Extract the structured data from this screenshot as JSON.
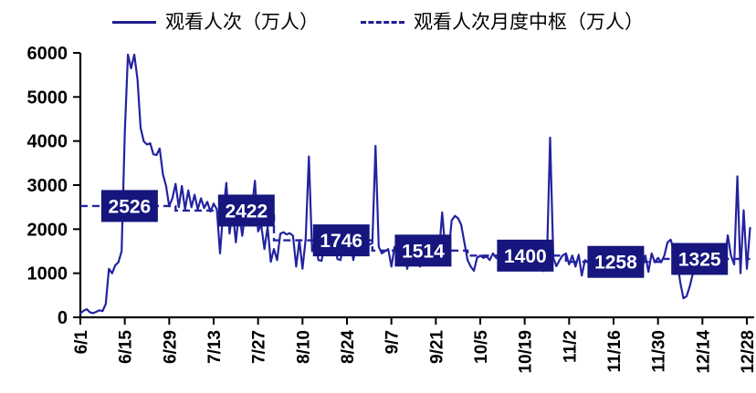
{
  "colors": {
    "line": "#2323A0",
    "median_line": "#2323A0",
    "box_fill": "#16167E",
    "box_text": "#FFFFFF",
    "axis": "#000000",
    "background": "#FFFFFF"
  },
  "chart_data": {
    "type": "line",
    "title": "",
    "xlabel": "",
    "ylabel": "",
    "ylim": [
      0,
      6000
    ],
    "y_ticks": [
      0,
      1000,
      2000,
      3000,
      4000,
      5000,
      6000
    ],
    "x_tick_labels": [
      "6/1",
      "6/15",
      "6/29",
      "7/13",
      "7/27",
      "8/10",
      "8/24",
      "9/7",
      "9/21",
      "10/5",
      "10/19",
      "11/2",
      "11/16",
      "11/30",
      "12/14",
      "12/28"
    ],
    "x_tick_interval_days": 14,
    "x_start_date": "6/1",
    "grid": false,
    "legend_position": "top",
    "series": [
      {
        "name": "观看人次（万人）",
        "style": "solid",
        "daily_values": [
          90,
          150,
          185,
          115,
          95,
          125,
          160,
          140,
          300,
          1100,
          1000,
          1180,
          1250,
          1500,
          4200,
          5960,
          5650,
          5960,
          5400,
          4300,
          3990,
          3920,
          3950,
          3700,
          3680,
          3830,
          3250,
          2980,
          2520,
          2700,
          3030,
          2500,
          2980,
          2450,
          2880,
          2500,
          2780,
          2450,
          2700,
          2480,
          2620,
          2400,
          2580,
          2450,
          1450,
          2400,
          3050,
          1900,
          2420,
          1700,
          2400,
          1850,
          2380,
          2300,
          2420,
          3100,
          1950,
          2100,
          1550,
          2050,
          1260,
          1550,
          1300,
          1900,
          1930,
          1880,
          1910,
          1850,
          1150,
          1750,
          1100,
          1780,
          3650,
          1500,
          1746,
          1300,
          1280,
          1700,
          1720,
          1650,
          1700,
          1320,
          1300,
          1700,
          1680,
          1720,
          1300,
          1680,
          1700,
          1650,
          1700,
          1650,
          1680,
          3890,
          1600,
          1450,
          1500,
          1550,
          1150,
          1600,
          1550,
          1500,
          1520,
          1100,
          1500,
          1480,
          1520,
          1150,
          1480,
          1500,
          1450,
          1480,
          1200,
          1450,
          2380,
          1500,
          1450,
          2200,
          2300,
          2250,
          2100,
          1700,
          1300,
          1150,
          1055,
          1350,
          1400,
          1350,
          1380,
          1300,
          1450,
          1350,
          1320,
          1350,
          1300,
          1320,
          1280,
          1300,
          1350,
          1300,
          1320,
          1280,
          1300,
          1250,
          1100,
          1300,
          1050,
          1300,
          4080,
          1350,
          1160,
          1300,
          1410,
          1450,
          1200,
          1400,
          1150,
          1420,
          950,
          1300,
          1250,
          1280,
          1258,
          1250,
          1300,
          950,
          1280,
          1250,
          1300,
          1260,
          1240,
          1280,
          1250,
          1300,
          1280,
          1260,
          1320,
          1100,
          1400,
          1030,
          1450,
          1250,
          1350,
          1250,
          1400,
          1700,
          1760,
          1500,
          1300,
          800,
          430,
          480,
          700,
          1000,
          1250,
          1300,
          1325,
          1300,
          1320,
          1300,
          1350,
          1300,
          1500,
          1320,
          1860,
          1400,
          1200,
          3200,
          1000,
          2430,
          1100,
          2030
        ]
      },
      {
        "name": "观看人次月度中枢（万人）",
        "style": "dashed-step",
        "months": [
          {
            "month": "6",
            "value": 2526,
            "label": "2526",
            "start_day": 0,
            "end_day": 30,
            "box_day": 15.5
          },
          {
            "month": "7",
            "value": 2422,
            "label": "2422",
            "start_day": 30,
            "end_day": 61,
            "box_day": 52.3
          },
          {
            "month": "8",
            "value": 1746,
            "label": "1746",
            "start_day": 61,
            "end_day": 92,
            "box_day": 82.2
          },
          {
            "month": "9",
            "value": 1514,
            "label": "1514",
            "start_day": 92,
            "end_day": 122,
            "box_day": 108
          },
          {
            "month": "10",
            "value": 1400,
            "label": "1400",
            "start_day": 122,
            "end_day": 153,
            "box_day": 140.2
          },
          {
            "month": "11",
            "value": 1258,
            "label": "1258",
            "start_day": 153,
            "end_day": 183,
            "box_day": 168.7
          },
          {
            "month": "12",
            "value": 1325,
            "label": "1325",
            "start_day": 183,
            "end_day": 211,
            "box_day": 195.1
          }
        ]
      }
    ]
  }
}
